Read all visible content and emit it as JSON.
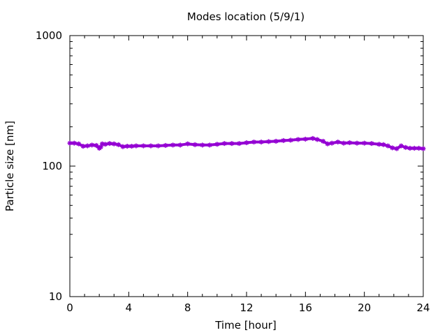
{
  "chart_data": {
    "type": "line",
    "title": "Modes location (5/9/1)",
    "xlabel": "Time [hour]",
    "ylabel": "Particle size [nm]",
    "xlim": [
      0,
      24
    ],
    "ylim": [
      10,
      1000
    ],
    "yscale": "log",
    "xticks": [
      "0",
      "4",
      "8",
      "12",
      "16",
      "20",
      "24"
    ],
    "yticks": [
      "10",
      "100",
      "1000"
    ],
    "grid": false,
    "series": [
      {
        "color": "#9400d3",
        "marker": "star",
        "x": [
          0.0,
          0.3,
          0.6,
          0.9,
          1.2,
          1.5,
          1.8,
          2.0,
          2.1,
          2.2,
          2.4,
          2.7,
          3.0,
          3.3,
          3.6,
          3.9,
          4.2,
          4.5,
          5.0,
          5.5,
          6.0,
          6.5,
          7.0,
          7.5,
          8.0,
          8.5,
          9.0,
          9.5,
          10.0,
          10.5,
          11.0,
          11.5,
          12.0,
          12.5,
          13.0,
          13.5,
          14.0,
          14.5,
          15.0,
          15.5,
          16.0,
          16.5,
          16.8,
          17.2,
          17.5,
          17.8,
          18.2,
          18.6,
          19.0,
          19.5,
          20.0,
          20.5,
          21.0,
          21.3,
          21.6,
          21.9,
          22.2,
          22.5,
          22.8,
          23.1,
          23.4,
          23.7,
          24.0
        ],
        "y": [
          150,
          150,
          148,
          142,
          143,
          145,
          144,
          137,
          140,
          148,
          147,
          149,
          148,
          146,
          141,
          142,
          142,
          143,
          143,
          143,
          143,
          144,
          145,
          145,
          148,
          146,
          145,
          145,
          147,
          149,
          149,
          149,
          151,
          153,
          153,
          154,
          155,
          157,
          158,
          160,
          161,
          163,
          160,
          155,
          148,
          150,
          153,
          150,
          151,
          150,
          150,
          149,
          147,
          146,
          143,
          138,
          136,
          143,
          139,
          137,
          137,
          137,
          136
        ]
      }
    ]
  }
}
